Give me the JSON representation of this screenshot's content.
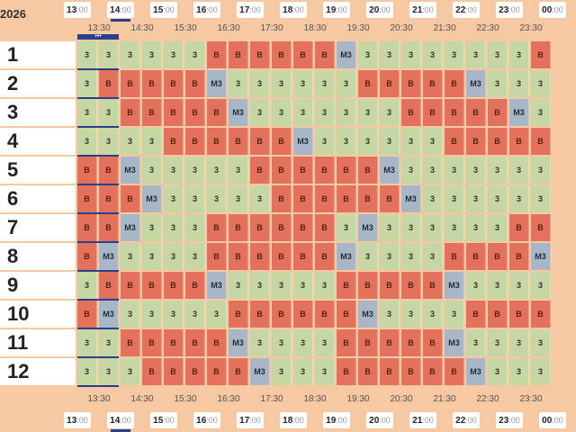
{
  "year_fragment": "2026",
  "hours": [
    "13",
    "14",
    "15",
    "16",
    "17",
    "18",
    "19",
    "20",
    "21",
    "22",
    "23",
    "00"
  ],
  "hour_minutes": "00",
  "half_hours": [
    "13:30",
    "14:30",
    "15:30",
    "16:30",
    "17:30",
    "18:30",
    "19:30",
    "20:30",
    "21:30",
    "22:30",
    "23:30"
  ],
  "selection_marker": "•••",
  "rows": [
    {
      "label": "1",
      "cells": [
        "3",
        "3",
        "3",
        "3",
        "3",
        "3",
        "B",
        "B",
        "B",
        "B",
        "B",
        "B",
        "M3",
        "3",
        "3",
        "3",
        "3",
        "3",
        "3",
        "3",
        "3",
        "B"
      ]
    },
    {
      "label": "2",
      "cells": [
        "3",
        "B",
        "B",
        "B",
        "B",
        "B",
        "M3",
        "3",
        "3",
        "3",
        "3",
        "3",
        "3",
        "B",
        "B",
        "B",
        "B",
        "B",
        "M3",
        "3",
        "3",
        "3"
      ]
    },
    {
      "label": "3",
      "cells": [
        "3",
        "3",
        "B",
        "B",
        "B",
        "B",
        "B",
        "M3",
        "3",
        "3",
        "3",
        "3",
        "3",
        "3",
        "3",
        "B",
        "B",
        "B",
        "B",
        "B",
        "M3",
        "3"
      ]
    },
    {
      "label": "4",
      "cells": [
        "3",
        "3",
        "3",
        "3",
        "B",
        "B",
        "B",
        "B",
        "B",
        "B",
        "M3",
        "3",
        "3",
        "3",
        "3",
        "3",
        "3",
        "B",
        "B",
        "B",
        "B",
        "B"
      ]
    },
    {
      "label": "5",
      "cells": [
        "B",
        "B",
        "M3",
        "3",
        "3",
        "3",
        "3",
        "3",
        "B",
        "B",
        "B",
        "B",
        "B",
        "B",
        "M3",
        "3",
        "3",
        "3",
        "3",
        "3",
        "3",
        "3"
      ]
    },
    {
      "label": "6",
      "cells": [
        "B",
        "B",
        "B",
        "M3",
        "3",
        "3",
        "3",
        "3",
        "3",
        "B",
        "B",
        "B",
        "B",
        "B",
        "B",
        "M3",
        "3",
        "3",
        "3",
        "3",
        "3",
        "3"
      ]
    },
    {
      "label": "7",
      "cells": [
        "B",
        "B",
        "M3",
        "3",
        "3",
        "3",
        "B",
        "B",
        "B",
        "B",
        "B",
        "B",
        "3",
        "M3",
        "3",
        "3",
        "3",
        "3",
        "3",
        "3",
        "B",
        "B"
      ]
    },
    {
      "label": "8",
      "cells": [
        "B",
        "M3",
        "3",
        "3",
        "3",
        "3",
        "B",
        "B",
        "B",
        "B",
        "B",
        "B",
        "M3",
        "3",
        "3",
        "3",
        "3",
        "B",
        "B",
        "B",
        "B",
        "M3"
      ]
    },
    {
      "label": "9",
      "cells": [
        "3",
        "B",
        "B",
        "B",
        "B",
        "B",
        "M3",
        "3",
        "3",
        "3",
        "3",
        "3",
        "B",
        "B",
        "B",
        "B",
        "B",
        "M3",
        "3",
        "3",
        "3",
        "3"
      ]
    },
    {
      "label": "10",
      "cells": [
        "B",
        "M3",
        "3",
        "3",
        "3",
        "3",
        "3",
        "B",
        "B",
        "B",
        "B",
        "B",
        "B",
        "M3",
        "3",
        "3",
        "3",
        "3",
        "B",
        "B",
        "B",
        "B"
      ]
    },
    {
      "label": "11",
      "cells": [
        "3",
        "3",
        "B",
        "B",
        "B",
        "B",
        "B",
        "M3",
        "3",
        "3",
        "3",
        "3",
        "B",
        "B",
        "B",
        "B",
        "B",
        "M3",
        "3",
        "3",
        "3",
        "3"
      ]
    },
    {
      "label": "12",
      "cells": [
        "3",
        "3",
        "3",
        "B",
        "B",
        "B",
        "B",
        "B",
        "M3",
        "3",
        "3",
        "3",
        "B",
        "B",
        "B",
        "B",
        "B",
        "B",
        "M3",
        "3",
        "3",
        "3"
      ]
    }
  ],
  "colors": {
    "grid_3": "#c5d8a4",
    "grid_B": "#e2725b",
    "grid_M3": "#a8b7c5",
    "background": "#f6c9a3",
    "selection": "#2c3e8c"
  }
}
